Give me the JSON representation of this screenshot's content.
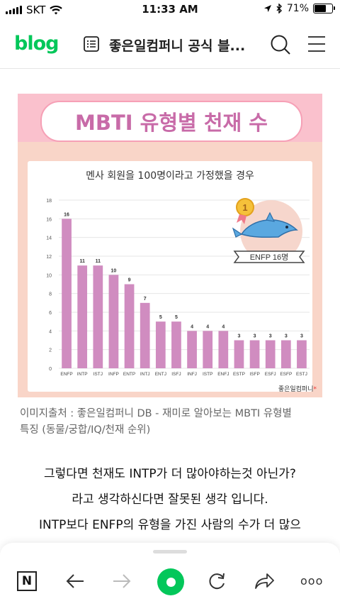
{
  "status_bar": {
    "carrier": "SKT",
    "time": "11:33 AM",
    "battery_percent": "71%",
    "battery_level": 0.71
  },
  "header": {
    "logo": "blog",
    "title": "좋은일컴퍼니 공식 블..."
  },
  "image": {
    "banner_title": "MBTI 유형별 천재 수",
    "chart_title": "멘사 회원을 100명이라고 가정했을 경우",
    "badge_medal": "1",
    "badge_label": "ENFP 16명",
    "company": "좋은일컴퍼니",
    "company_mark": "*"
  },
  "chart_data": {
    "type": "bar",
    "categories": [
      "ENFP",
      "INTP",
      "ISTJ",
      "INFP",
      "ENTP",
      "INTJ",
      "ENTJ",
      "ISFJ",
      "INFJ",
      "ISTP",
      "ENFJ",
      "ESTP",
      "ISFP",
      "ESFJ",
      "ESFP",
      "ESTJ"
    ],
    "values": [
      16,
      11,
      11,
      10,
      9,
      7,
      5,
      5,
      4,
      4,
      4,
      3,
      3,
      3,
      3,
      3
    ],
    "title": "멘사 회원을 100명이라고 가정했을 경우",
    "xlabel": "",
    "ylabel": "",
    "ylim": [
      0,
      18
    ],
    "yticks": [
      0,
      2,
      4,
      6,
      8,
      10,
      12,
      14,
      16,
      18
    ],
    "grid": true,
    "bar_color": "#d08cc0"
  },
  "caption": {
    "line1": "이미지출처 : 좋은일컴퍼니 DB - 재미로 알아보는 MBTI 유형별",
    "line2": "특징 (동물/궁합/IQ/천재 순위)"
  },
  "body": {
    "line1": "그렇다면 천재도 INTP가 더 많아야하는것 아닌가?",
    "line2": "라고 생각하신다면 잘못된 생각 입니다.",
    "line3": "INTP보다 ENFP의 유형을 가진 사람의 수가 더 많으"
  },
  "bottom_bar": {
    "n_label": "N",
    "more_label": "ooo"
  },
  "colors": {
    "brand_green": "#03c75a",
    "banner_text": "#c86ba8",
    "card_bg": "#f9d5c8",
    "card_top": "#fac1cd"
  }
}
